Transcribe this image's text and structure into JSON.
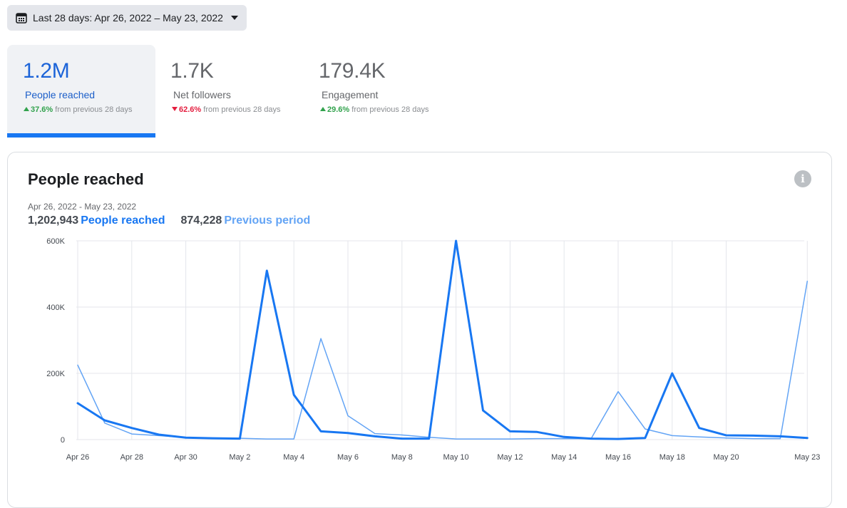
{
  "date_range": {
    "label": "Last 28 days: Apr 26, 2022 – May 23, 2022",
    "icon": "calendar-icon",
    "dropdown_icon": "caret-down-icon"
  },
  "metrics": [
    {
      "value": "1.2M",
      "label": "People reached",
      "change_pct": "37.6%",
      "direction": "up",
      "change_text": "from previous 28 days",
      "active": true
    },
    {
      "value": "1.7K",
      "label": "Net followers",
      "change_pct": "62.6%",
      "direction": "down",
      "change_text": "from previous 28 days",
      "active": false
    },
    {
      "value": "179.4K",
      "label": "Engagement",
      "change_pct": "29.6%",
      "direction": "up",
      "change_text": "from previous 28 days",
      "active": false
    }
  ],
  "card": {
    "title": "People reached",
    "info_icon": "info-icon",
    "range_text": "Apr 26, 2022 - May 23, 2022",
    "current_total": "1,202,943",
    "current_label": "People reached",
    "previous_total": "874,228",
    "previous_label": "Previous period"
  },
  "colors": {
    "current": "#1877f2",
    "previous": "#63a4f5",
    "up": "#31a24c",
    "down": "#e41e3f"
  },
  "chart_data": {
    "type": "line",
    "x": [
      "Apr 26",
      "Apr 27",
      "Apr 28",
      "Apr 29",
      "Apr 30",
      "May 1",
      "May 2",
      "May 3",
      "May 4",
      "May 5",
      "May 6",
      "May 7",
      "May 8",
      "May 9",
      "May 10",
      "May 11",
      "May 12",
      "May 13",
      "May 14",
      "May 15",
      "May 16",
      "May 17",
      "May 18",
      "May 19",
      "May 20",
      "May 21",
      "May 22",
      "May 23"
    ],
    "x_tick_labels": [
      "Apr 26",
      "Apr 28",
      "Apr 30",
      "May 2",
      "May 4",
      "May 6",
      "May 8",
      "May 10",
      "May 12",
      "May 14",
      "May 16",
      "May 18",
      "May 20",
      "May 23"
    ],
    "y_tick_labels": [
      "0",
      "200K",
      "400K",
      "600K"
    ],
    "ylim": [
      0,
      600000
    ],
    "series": [
      {
        "name": "People reached",
        "values": [
          110000,
          58000,
          35000,
          15000,
          6000,
          4000,
          3000,
          510000,
          135000,
          25000,
          20000,
          10000,
          3000,
          3000,
          600000,
          88000,
          25000,
          23000,
          8000,
          3000,
          2000,
          5000,
          200000,
          35000,
          13000,
          12000,
          10000,
          5000
        ]
      },
      {
        "name": "Previous period",
        "values": [
          225000,
          50000,
          17000,
          12000,
          6000,
          5000,
          4000,
          2000,
          2000,
          305000,
          72000,
          18000,
          14000,
          7000,
          2000,
          2000,
          2000,
          3000,
          3000,
          3000,
          145000,
          32000,
          12000,
          8000,
          5000,
          3000,
          3000,
          478000
        ]
      }
    ],
    "grid": true
  }
}
